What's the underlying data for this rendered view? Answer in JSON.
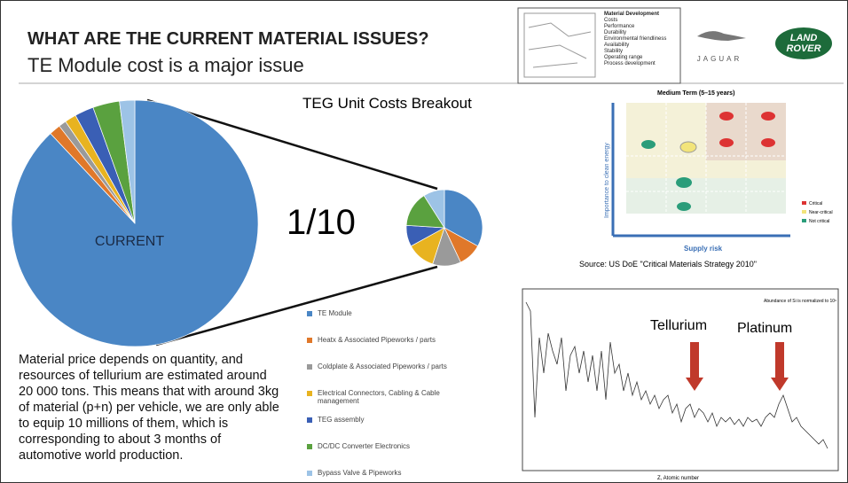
{
  "header": {
    "title": "WHAT ARE THE CURRENT MATERIAL ISSUES?",
    "subtitle": "TE Module cost is a major issue"
  },
  "pie_title": "TEG Unit Costs Breakout",
  "ratio_label": "1/10",
  "slice_colors": [
    "#4a86c5",
    "#e0782a",
    "#9a9a9a",
    "#e8b320",
    "#3a5fb5",
    "#5aa13f",
    "#9dc3e6"
  ],
  "current_pie": {
    "label": "CURRENT",
    "values": [
      88,
      1.5,
      1,
      1.5,
      2.5,
      3.5,
      2
    ]
  },
  "breakout_pie": {
    "values": [
      33,
      10,
      12,
      12,
      9,
      15,
      9
    ]
  },
  "legend": [
    "TE Module",
    "Heatx & Associated Pipeworks / parts",
    "Coldplate & Associated Pipeworks / parts",
    "Electrical Connectors, Cabling & Cable management",
    "TEG assembly",
    "DC/DC Converter Electronics",
    "Bypass Valve & Pipeworks"
  ],
  "paragraph": "Material price depends on quantity, and resources of tellurium are estimated around 20 000 tons. This means that with around 3kg of material (p+n) per vehicle, we are only able to equip 10 millions of them, which is corresponding to about 3 months of automotive world production.",
  "diagram_list": [
    "Material Development",
    "Costs",
    "Performance",
    "Durability",
    "Environmental friendliness",
    "Availability",
    "Stability",
    "Operating range",
    "Process development"
  ],
  "logos": {
    "jaguar": "JAGUAR",
    "land_rover": [
      "LAND",
      "ROVER"
    ]
  },
  "matrix": {
    "title": "Medium Term (5–15 years)",
    "x_label": "Supply risk",
    "y_label": "Importance to clean energy",
    "key": [
      "Critical",
      "Near-critical",
      "Not critical"
    ]
  },
  "source": "Source: US DoE \"Critical Materials Strategy 2010\"",
  "abundance": {
    "labels": [
      "Tellurium",
      "Platinum"
    ],
    "x_label": "Z, Atomic number",
    "note": "Abundance of Si is normalized to 10⁶"
  }
}
